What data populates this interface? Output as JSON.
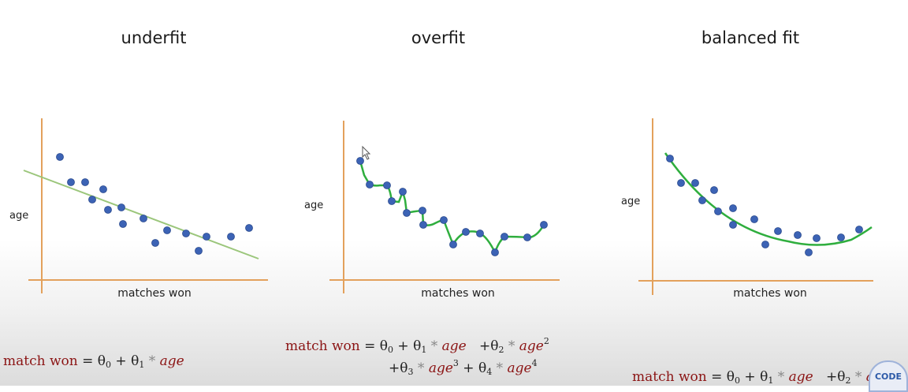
{
  "panels": [
    {
      "title": "underfit",
      "xlabel": "matches won",
      "ylabel": "age",
      "fit": "linear"
    },
    {
      "title": "overfit",
      "xlabel": "matches won",
      "ylabel": "age",
      "fit": "interpolating"
    },
    {
      "title": "balanced fit",
      "xlabel": "matches won",
      "ylabel": "age",
      "fit": "quadratic"
    }
  ],
  "formulas": {
    "lhs": "match won",
    "theta": "θ",
    "age": "age",
    "sub0": "0",
    "sub1": "1",
    "sub2": "2",
    "sub3": "3",
    "sub4": "4",
    "sup2": "2",
    "sup3": "3",
    "sup4": "4"
  },
  "colors": {
    "axis": "#e3a15c",
    "point": "#3c63b5",
    "fit": "#2fae3e",
    "underfit_line": "#9bc67b",
    "formula_text": "#8b1414"
  },
  "logo": {
    "text": "CODE",
    "icon": "codebasics-logo-icon"
  }
}
